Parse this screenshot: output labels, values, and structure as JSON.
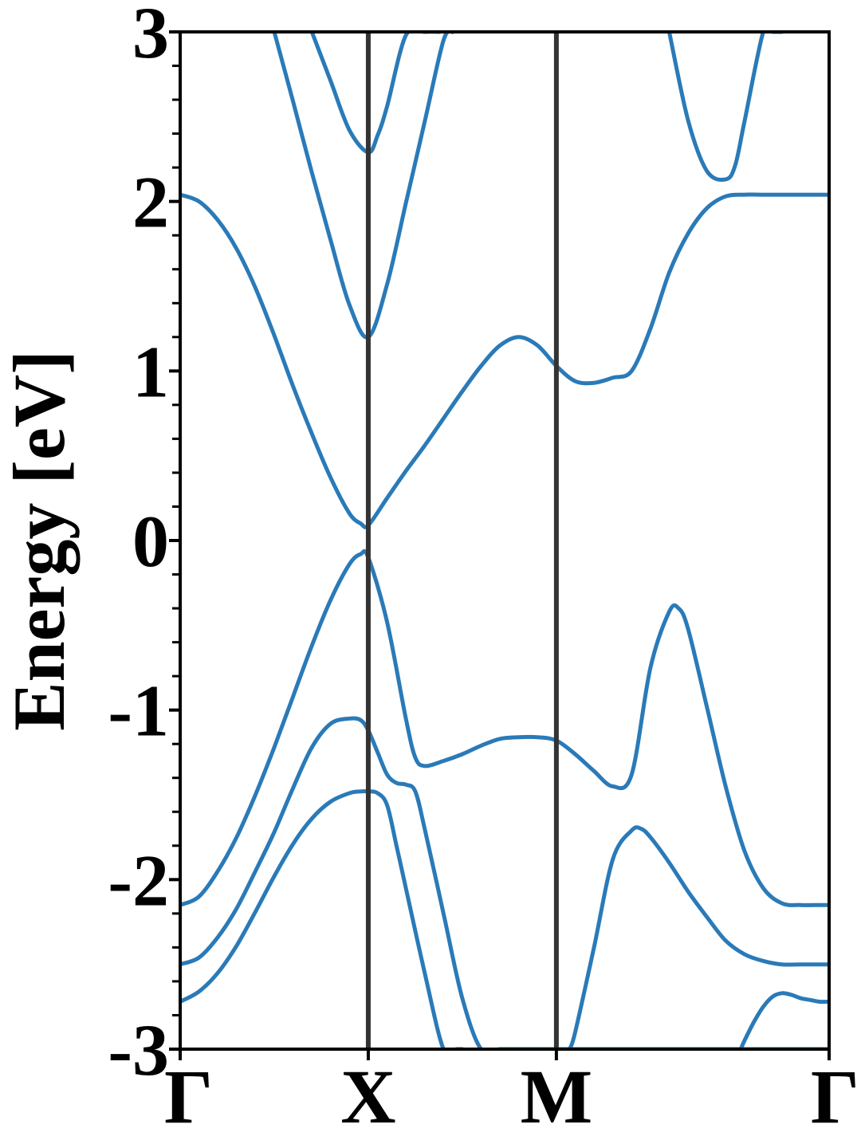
{
  "chart_data": {
    "type": "line",
    "title": "",
    "xlabel": "",
    "ylabel": "Energy [eV]",
    "ylim": [
      -3,
      3
    ],
    "yticks": [
      "3",
      "2",
      "1",
      "0",
      "-1",
      "-2",
      "-3"
    ],
    "ytick_values": [
      3,
      2,
      1,
      0,
      -1,
      -2,
      -3
    ],
    "minor_tick_step": 0.2,
    "xlim": [
      0,
      3.45
    ],
    "xticks": [
      {
        "label": "Γ",
        "k": 0
      },
      {
        "label": "X",
        "k": 1
      },
      {
        "label": "M",
        "k": 2
      },
      {
        "label": "Γ",
        "k": 3.45
      }
    ],
    "high_symmetry_lines_k": [
      1,
      2
    ],
    "grid": false,
    "legend": "none",
    "line_color": "#2a7ab8",
    "vline_color": "#333333",
    "series": [
      {
        "x": [
          0,
          0.1,
          0.2,
          0.3,
          0.4,
          0.5,
          0.6,
          0.7,
          0.8,
          0.9,
          0.96,
          1.0,
          1.1,
          1.2,
          1.3,
          1.4,
          1.5,
          1.6,
          1.7,
          1.8,
          1.9,
          2.0,
          2.1,
          2.2,
          2.3,
          2.4,
          2.5,
          2.6,
          2.7,
          2.8,
          2.9,
          3.0,
          3.1,
          3.2,
          3.3,
          3.4,
          3.45
        ],
        "y": [
          2.04,
          2.0,
          1.89,
          1.72,
          1.49,
          1.21,
          0.91,
          0.63,
          0.37,
          0.16,
          0.1,
          0.09,
          0.25,
          0.41,
          0.56,
          0.72,
          0.88,
          1.03,
          1.15,
          1.2,
          1.15,
          1.03,
          0.94,
          0.93,
          0.96,
          1.0,
          1.25,
          1.58,
          1.81,
          1.96,
          2.03,
          2.04,
          2.04,
          2.04,
          2.04,
          2.04,
          2.04
        ]
      },
      {
        "x": [
          0.5,
          0.6,
          0.7,
          0.8,
          0.9,
          1.0,
          1.1,
          1.2,
          1.3,
          1.4,
          1.45
        ],
        "y": [
          3.0,
          2.59,
          2.17,
          1.77,
          1.39,
          1.2,
          1.51,
          1.99,
          2.47,
          2.95,
          3.0
        ]
      },
      {
        "x": [
          0.7,
          0.8,
          0.9,
          1.0,
          1.05,
          1.1,
          1.2,
          1.3,
          1.38
        ],
        "y": [
          3.0,
          2.71,
          2.42,
          2.29,
          2.39,
          2.56,
          2.98,
          3.0,
          3.0
        ]
      },
      {
        "x": [
          2.6,
          2.7,
          2.8,
          2.9,
          2.95,
          3.0,
          3.1,
          3.15,
          3.2
        ],
        "y": [
          3.0,
          2.48,
          2.18,
          2.13,
          2.21,
          2.47,
          3.0,
          3.0,
          3.0
        ]
      },
      {
        "x": [
          0,
          0.1,
          0.2,
          0.3,
          0.4,
          0.5,
          0.6,
          0.7,
          0.8,
          0.9,
          0.96,
          1.0,
          1.1,
          1.2,
          1.25,
          1.3,
          1.4,
          1.5,
          1.6,
          1.7,
          1.8,
          1.9,
          2.0,
          2.1,
          2.2,
          2.3,
          2.4,
          2.5,
          2.6,
          2.65,
          2.7,
          2.8,
          2.9,
          3.0,
          3.1,
          3.2,
          3.3,
          3.4,
          3.45
        ],
        "y": [
          -2.15,
          -2.1,
          -1.95,
          -1.75,
          -1.5,
          -1.22,
          -0.92,
          -0.62,
          -0.35,
          -0.14,
          -0.08,
          -0.1,
          -0.48,
          -1.05,
          -1.28,
          -1.33,
          -1.3,
          -1.26,
          -1.21,
          -1.17,
          -1.16,
          -1.16,
          -1.18,
          -1.26,
          -1.36,
          -1.45,
          -1.38,
          -0.75,
          -0.42,
          -0.4,
          -0.52,
          -0.98,
          -1.45,
          -1.83,
          -2.05,
          -2.14,
          -2.15,
          -2.15,
          -2.15
        ]
      },
      {
        "x": [
          0,
          0.1,
          0.2,
          0.3,
          0.4,
          0.5,
          0.6,
          0.7,
          0.8,
          0.9,
          0.96,
          1.0,
          1.05,
          1.1,
          1.15,
          1.2,
          1.25,
          1.3,
          1.4,
          1.5,
          1.6,
          1.7,
          1.8,
          1.9,
          2.0,
          2.1,
          2.2,
          2.3,
          2.4,
          2.5,
          2.6,
          2.7,
          2.8,
          2.9,
          3.0,
          3.1,
          3.2,
          3.3,
          3.4,
          3.45
        ],
        "y": [
          -2.5,
          -2.46,
          -2.34,
          -2.17,
          -1.95,
          -1.72,
          -1.46,
          -1.22,
          -1.08,
          -1.05,
          -1.06,
          -1.12,
          -1.25,
          -1.38,
          -1.43,
          -1.44,
          -1.48,
          -1.7,
          -2.2,
          -2.7,
          -3.0,
          -3.0,
          -3.0,
          -3.0,
          -3.0,
          -3.0,
          -3.0,
          -3.0,
          -3.0,
          -3.0,
          -3.0,
          -3.0,
          -3.0,
          -3.0,
          -3.0,
          -3.0,
          -3.0,
          -3.0,
          -3.0,
          -3.0
        ]
      },
      {
        "x": [
          0,
          0.1,
          0.2,
          0.3,
          0.4,
          0.5,
          0.6,
          0.7,
          0.8,
          0.9,
          0.96,
          1.0,
          1.05,
          1.1,
          1.15,
          1.2,
          1.3,
          1.4,
          1.47,
          1.5
        ],
        "y": [
          -2.72,
          -2.66,
          -2.55,
          -2.39,
          -2.19,
          -1.98,
          -1.79,
          -1.64,
          -1.54,
          -1.49,
          -1.48,
          -1.48,
          -1.49,
          -1.56,
          -1.8,
          -2.05,
          -2.55,
          -3.0,
          -3.0,
          -3.0
        ]
      },
      {
        "x": [
          2.07,
          2.1,
          2.2,
          2.3,
          2.4,
          2.45,
          2.5,
          2.6,
          2.7,
          2.8,
          2.9,
          3.0,
          3.1,
          3.2,
          3.3,
          3.4,
          3.45
        ],
        "y": [
          -3.0,
          -2.9,
          -2.4,
          -1.88,
          -1.71,
          -1.7,
          -1.75,
          -1.9,
          -2.07,
          -2.22,
          -2.36,
          -2.44,
          -2.48,
          -2.5,
          -2.5,
          -2.5,
          -2.5
        ]
      },
      {
        "x": [
          2.98,
          3.0,
          3.05,
          3.1,
          3.15,
          3.2,
          3.25,
          3.3,
          3.35,
          3.4,
          3.45
        ],
        "y": [
          -3.0,
          -2.95,
          -2.84,
          -2.75,
          -2.69,
          -2.67,
          -2.68,
          -2.7,
          -2.71,
          -2.72,
          -2.72
        ]
      }
    ]
  }
}
